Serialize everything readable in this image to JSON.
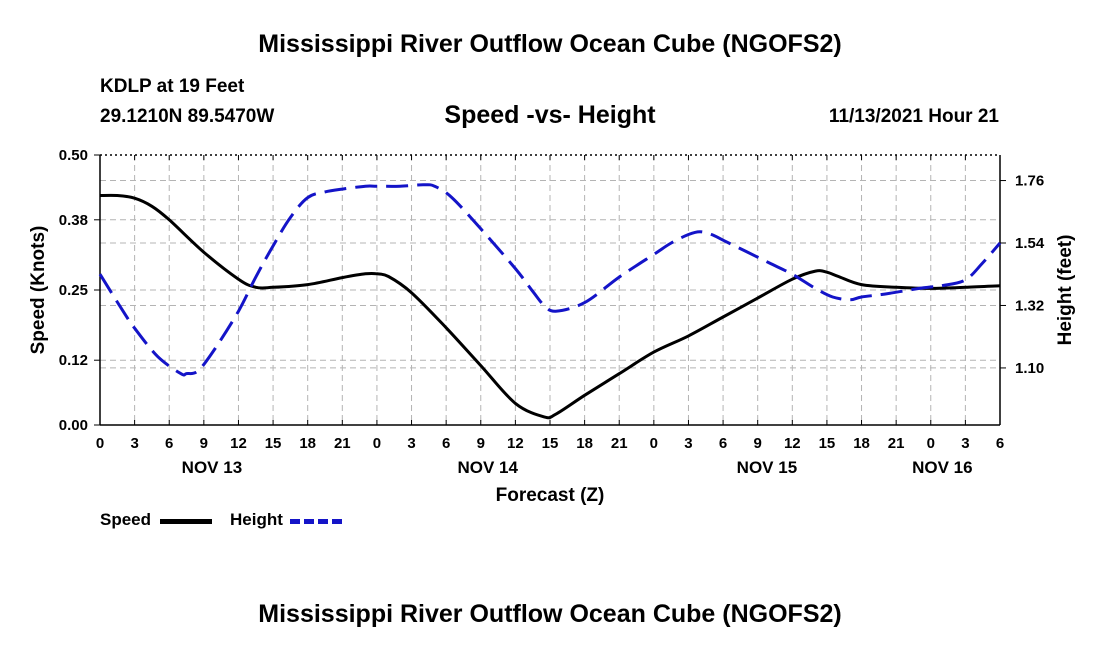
{
  "header": {
    "title": "Mississippi River Outflow Ocean Cube (NGOFS2)",
    "station": "KDLP at 19 Feet",
    "coords": "29.1210N  89.5470W",
    "datetime": "11/13/2021 Hour 21"
  },
  "footer": {
    "title": "Mississippi River Outflow Ocean Cube (NGOFS2)"
  },
  "legend": {
    "speed_label": "Speed",
    "height_label": "Height"
  },
  "colors": {
    "speed": "#000000",
    "height": "#1414c8",
    "grid": "#b4b4b4"
  },
  "chart_data": {
    "type": "line",
    "title": "Speed -vs- Height",
    "xlabel": "Forecast (Z)",
    "ylabel_left": "Speed (Knots)",
    "ylabel_right": "Height (feet)",
    "x_range_hours": [
      0,
      78
    ],
    "x_ticks": [
      {
        "h": 0,
        "label": "0"
      },
      {
        "h": 3,
        "label": "3"
      },
      {
        "h": 6,
        "label": "6"
      },
      {
        "h": 9,
        "label": "9"
      },
      {
        "h": 12,
        "label": "12"
      },
      {
        "h": 15,
        "label": "15"
      },
      {
        "h": 18,
        "label": "18"
      },
      {
        "h": 21,
        "label": "21"
      },
      {
        "h": 24,
        "label": "0"
      },
      {
        "h": 27,
        "label": "3"
      },
      {
        "h": 30,
        "label": "6"
      },
      {
        "h": 33,
        "label": "9"
      },
      {
        "h": 36,
        "label": "12"
      },
      {
        "h": 39,
        "label": "15"
      },
      {
        "h": 42,
        "label": "18"
      },
      {
        "h": 45,
        "label": "21"
      },
      {
        "h": 48,
        "label": "0"
      },
      {
        "h": 51,
        "label": "3"
      },
      {
        "h": 54,
        "label": "6"
      },
      {
        "h": 57,
        "label": "9"
      },
      {
        "h": 60,
        "label": "12"
      },
      {
        "h": 63,
        "label": "15"
      },
      {
        "h": 66,
        "label": "18"
      },
      {
        "h": 69,
        "label": "21"
      },
      {
        "h": 72,
        "label": "0"
      },
      {
        "h": 75,
        "label": "3"
      },
      {
        "h": 78,
        "label": "6"
      }
    ],
    "day_labels": [
      {
        "h": 9.7,
        "label": "NOV 13"
      },
      {
        "h": 33.6,
        "label": "NOV 14"
      },
      {
        "h": 57.8,
        "label": "NOV 15"
      },
      {
        "h": 73.0,
        "label": "NOV 16"
      }
    ],
    "y_left": {
      "min": 0.0,
      "max": 0.5,
      "ticks": [
        "0.00",
        "0.12",
        "0.25",
        "0.38",
        "0.50"
      ]
    },
    "y_right": {
      "min": 0.899,
      "max": 1.85,
      "ticks": [
        "1.10",
        "1.32",
        "1.54",
        "1.76"
      ]
    },
    "series": [
      {
        "name": "Speed",
        "axis": "left",
        "style": "solid",
        "x": [
          0,
          1.5,
          3,
          4.5,
          6,
          9,
          12,
          13.5,
          15,
          18,
          21,
          23,
          24,
          25,
          27,
          30,
          33,
          36,
          38.5,
          39.5,
          42,
          45,
          48,
          51,
          54,
          57,
          60,
          62,
          63,
          64,
          66,
          69,
          72,
          75,
          78
        ],
        "values": [
          0.425,
          0.425,
          0.42,
          0.405,
          0.38,
          0.32,
          0.27,
          0.255,
          0.255,
          0.26,
          0.273,
          0.28,
          0.28,
          0.275,
          0.245,
          0.18,
          0.11,
          0.04,
          0.015,
          0.02,
          0.055,
          0.095,
          0.135,
          0.165,
          0.2,
          0.235,
          0.27,
          0.285,
          0.283,
          0.275,
          0.26,
          0.255,
          0.253,
          0.255,
          0.258
        ]
      },
      {
        "name": "Height",
        "axis": "right",
        "style": "dashed",
        "x": [
          0,
          2,
          3,
          5,
          7,
          7.5,
          8.5,
          10,
          12,
          13.5,
          15,
          16.5,
          18,
          19.5,
          21,
          23,
          24,
          26,
          28,
          29,
          30.5,
          33,
          36,
          37.5,
          38.5,
          39.5,
          42,
          45,
          48,
          49.5,
          51,
          52,
          53,
          54,
          56,
          58,
          60,
          62,
          63.5,
          65,
          66,
          68,
          71,
          72,
          73,
          75,
          76.5,
          78
        ],
        "values": [
          1.43,
          1.3,
          1.24,
          1.14,
          1.08,
          1.08,
          1.09,
          1.17,
          1.3,
          1.42,
          1.53,
          1.63,
          1.7,
          1.72,
          1.73,
          1.74,
          1.74,
          1.74,
          1.745,
          1.74,
          1.7,
          1.59,
          1.45,
          1.37,
          1.32,
          1.3,
          1.33,
          1.42,
          1.5,
          1.54,
          1.57,
          1.58,
          1.57,
          1.55,
          1.51,
          1.47,
          1.43,
          1.38,
          1.35,
          1.34,
          1.35,
          1.36,
          1.38,
          1.385,
          1.39,
          1.41,
          1.47,
          1.54
        ]
      }
    ]
  }
}
